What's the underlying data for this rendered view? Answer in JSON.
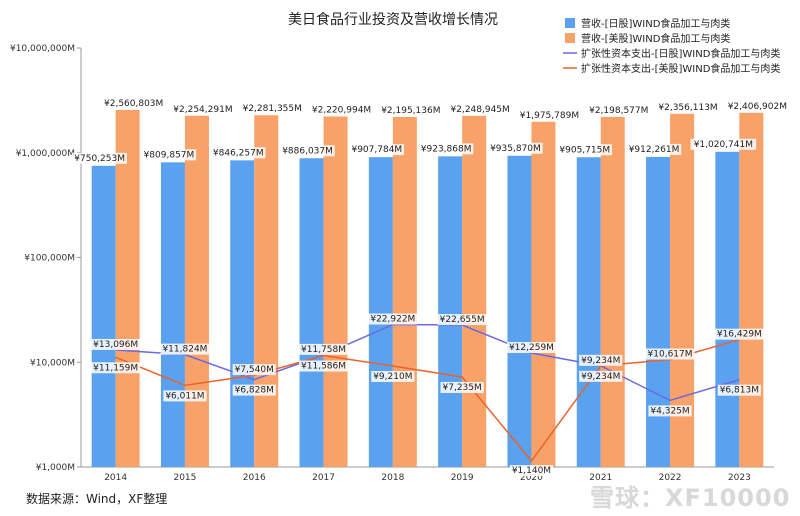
{
  "chart_data": {
    "type": "bar",
    "title": "美日食品行业投资及营收增长情况",
    "categories": [
      "2014",
      "2015",
      "2016",
      "2017",
      "2018",
      "2019",
      "2020",
      "2021",
      "2022",
      "2023"
    ],
    "y_scale": "log",
    "ylim": [
      1000,
      10000000
    ],
    "y_ticks": [
      1000,
      10000,
      100000,
      1000000,
      10000000
    ],
    "y_tick_labels": [
      "¥1,000M",
      "¥10,000M",
      "¥100,000M",
      "¥1,000,000M",
      "¥10,000,000M"
    ],
    "legend_position": "top-right",
    "grid": false,
    "series": [
      {
        "name": "营收-[日股]WIND食品加工与肉类",
        "kind": "bar",
        "color": "#5aa2f0",
        "values": [
          750253,
          809857,
          846257,
          886037,
          907784,
          923868,
          935870,
          905715,
          912261,
          1020741
        ],
        "labels": [
          "¥750,253M",
          "¥809,857M",
          "¥846,257M",
          "¥886,037M",
          "¥907,784M",
          "¥923,868M",
          "¥935,870M",
          "¥905,715M",
          "¥912,261M",
          "¥1,020,741M"
        ]
      },
      {
        "name": "营收-[美股]WIND食品加工与肉类",
        "kind": "bar",
        "color": "#f8a26a",
        "values": [
          2560803,
          2254291,
          2281355,
          2220994,
          2195136,
          2248945,
          1975789,
          2198577,
          2356113,
          2406902
        ],
        "labels": [
          "¥2,560,803M",
          "¥2,254,291M",
          "¥2,281,355M",
          "¥2,220,994M",
          "¥2,195,136M",
          "¥2,248,945M",
          "¥1,975,789M",
          "¥2,198,577M",
          "¥2,356,113M",
          "¥2,406,902M"
        ]
      },
      {
        "name": "扩张性资本支出-[日股]WIND食品加工与肉类",
        "kind": "line",
        "color": "#6a6ae0",
        "values": [
          13096,
          11824,
          6828,
          11758,
          22922,
          22655,
          12259,
          9234,
          4325,
          6813
        ],
        "labels": [
          "¥13,096M",
          "¥11,824M",
          "¥6,828M",
          "¥11,758M",
          "¥22,922M",
          "¥22,655M",
          "¥12,259M",
          "¥9,234M",
          "¥4,325M",
          "¥6,813M"
        ]
      },
      {
        "name": "扩张性资本支出-[美股]WIND食品加工与肉类",
        "kind": "line",
        "color": "#e8642c",
        "values": [
          11159,
          6011,
          7540,
          11586,
          9210,
          7235,
          1140,
          9234,
          10617,
          16429
        ],
        "labels": [
          "¥11,159M",
          "¥6,011M",
          "¥7,540M",
          "¥11,586M",
          "¥9,210M",
          "¥7,235M",
          "¥1,140M",
          "¥9,234M",
          "¥10,617M",
          "¥16,429M"
        ]
      }
    ]
  },
  "footer": {
    "source": "数据来源：Wind，XF整理",
    "watermark": "雪球：XF10000"
  }
}
